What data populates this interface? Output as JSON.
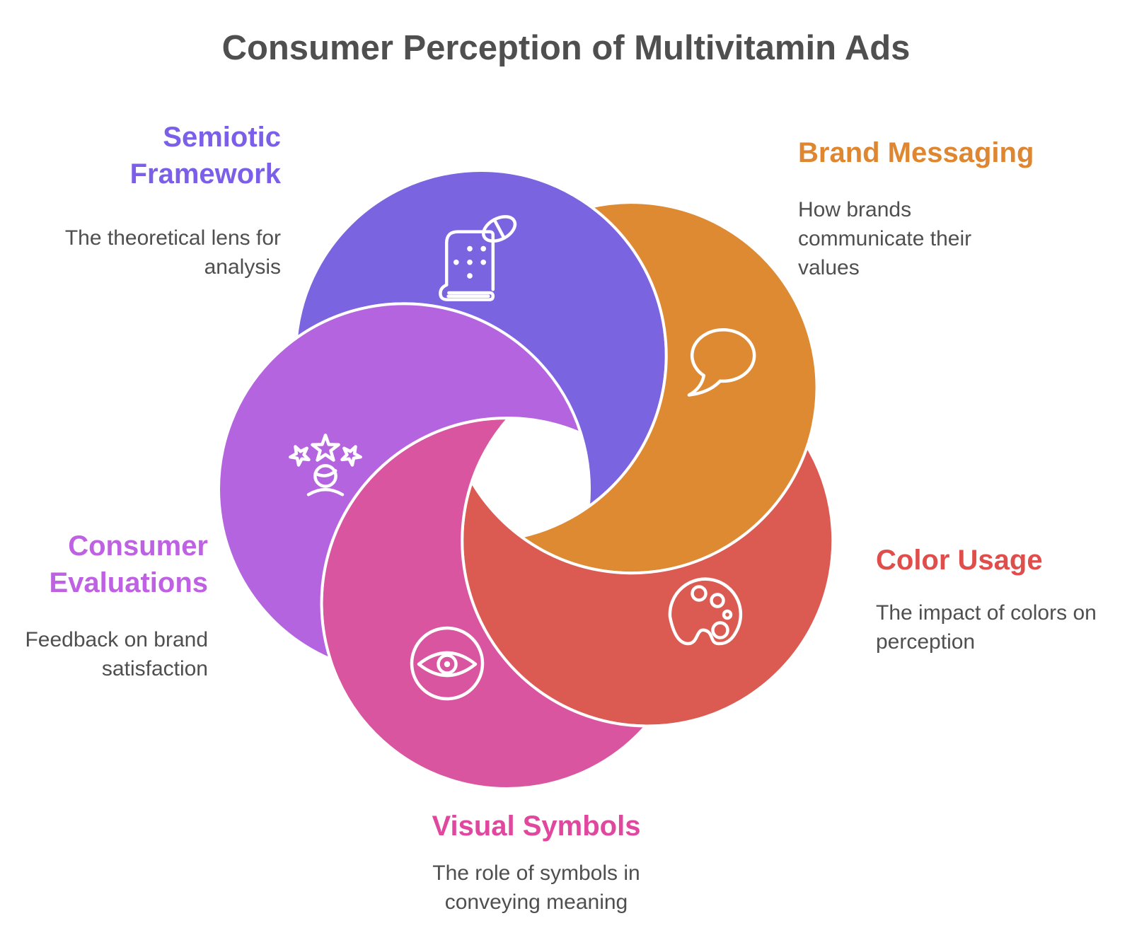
{
  "title": "Consumer Perception of Multivitamin Ads",
  "colors": {
    "title_text": "#4F4F4F",
    "body_text": "#4F4F4F",
    "outline_stroke": "#FFFFFF",
    "background": "#FFFFFF"
  },
  "segments": [
    {
      "id": "semiotic-framework",
      "label": "Semiotic Framework",
      "description": "The theoretical lens for analysis",
      "color": "#7A64E0",
      "label_color": "#7B5FE8",
      "icon": "braille-book-pill-icon"
    },
    {
      "id": "brand-messaging",
      "label": "Brand Messaging",
      "description": "How brands communicate their values",
      "color": "#DE8A33",
      "label_color": "#DE8630",
      "icon": "speech-bubble-icon"
    },
    {
      "id": "color-usage",
      "label": "Color Usage",
      "description": "The impact of colors on perception",
      "color": "#DB5A52",
      "label_color": "#E04E4C",
      "icon": "paint-palette-icon"
    },
    {
      "id": "visual-symbols",
      "label": "Visual Symbols",
      "description": "The role of symbols in conveying meaning",
      "color": "#D9559F",
      "label_color": "#E0479E",
      "icon": "eye-icon"
    },
    {
      "id": "consumer-evaluations",
      "label": "Consumer Evaluations",
      "description": "Feedback on brand satisfaction",
      "color": "#B464DE",
      "label_color": "#BE61E2",
      "icon": "star-rating-person-icon"
    }
  ]
}
